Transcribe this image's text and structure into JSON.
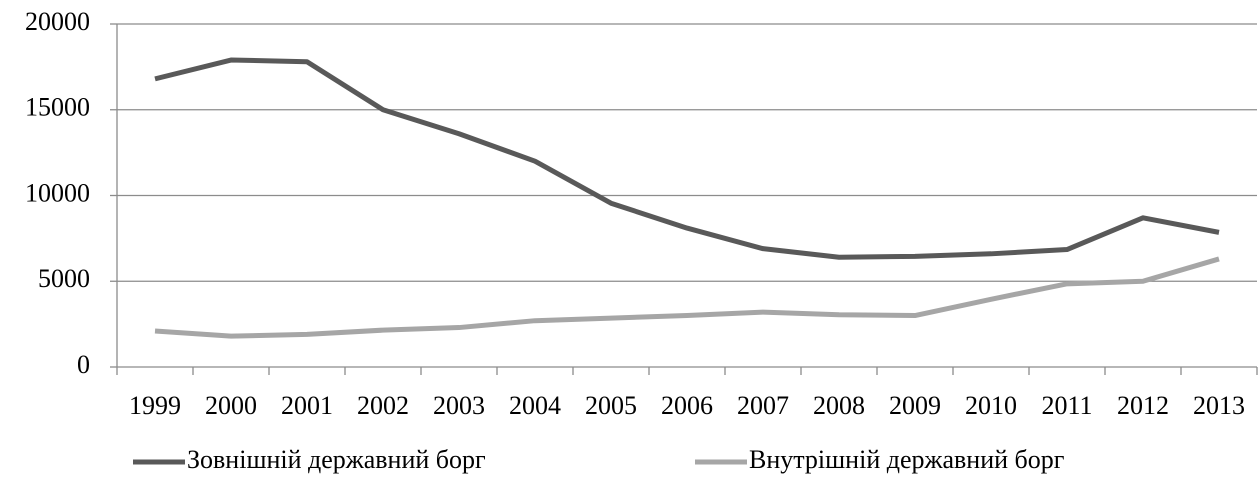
{
  "chart_data": {
    "type": "line",
    "categories": [
      "1999",
      "2000",
      "2001",
      "2002",
      "2003",
      "2004",
      "2005",
      "2006",
      "2007",
      "2008",
      "2009",
      "2010",
      "2011",
      "2012",
      "2013"
    ],
    "series": [
      {
        "name": "Зовнішній державний борг",
        "color": "#595959",
        "values": [
          16800,
          17900,
          17800,
          15000,
          13600,
          12000,
          9550,
          8100,
          6900,
          6400,
          6450,
          6600,
          6850,
          8700,
          7850
        ]
      },
      {
        "name": "Внутрішній державний борг",
        "color": "#a6a6a6",
        "values": [
          2100,
          1800,
          1900,
          2150,
          2300,
          2700,
          2850,
          3000,
          3200,
          3050,
          3000,
          3950,
          4850,
          5000,
          6300
        ]
      }
    ],
    "ylim": [
      0,
      20000
    ],
    "yticks": [
      0,
      5000,
      10000,
      15000,
      20000
    ],
    "grid": true,
    "legend": "bottom"
  }
}
